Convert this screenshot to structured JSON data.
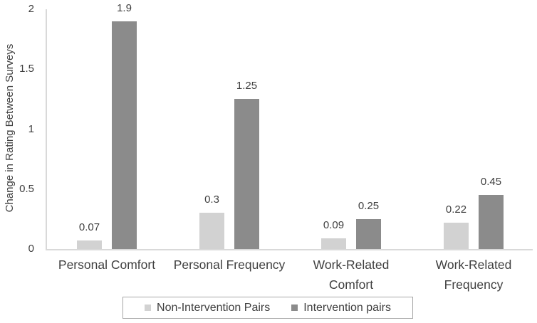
{
  "chart_data": {
    "type": "bar",
    "title": "",
    "ylabel": "Change in Rating Between Surveys",
    "xlabel": "",
    "ylim": [
      0,
      2
    ],
    "yticks": [
      0,
      0.5,
      1,
      1.5,
      2
    ],
    "ytick_labels": [
      "0",
      "0.5",
      "1",
      "1.5",
      "2"
    ],
    "categories": [
      "Personal Comfort",
      "Personal Frequency",
      "Work-Related Comfort",
      "Work-Related Frequency"
    ],
    "x_tick_labels": [
      "Personal Comfort",
      "Personal Frequency",
      "Work-Related\nComfort",
      "Work-Related\nFrequency"
    ],
    "series": [
      {
        "name": "Non-Intervention Pairs",
        "color": "#d2d2d2",
        "values": [
          0.07,
          0.3,
          0.09,
          0.22
        ],
        "value_labels": [
          "0.07",
          "0.3",
          "0.09",
          "0.22"
        ]
      },
      {
        "name": "Intervention pairs",
        "color": "#8b8b8b",
        "values": [
          1.9,
          1.25,
          0.25,
          0.45
        ],
        "value_labels": [
          "1.9",
          "1.25",
          "0.25",
          "0.45"
        ]
      }
    ],
    "grid": false,
    "legend_position": "bottom"
  },
  "colors": {
    "background": "#ffffff",
    "text": "#3f3f3f",
    "axis_line": "#d9d9d9",
    "legend_border": "#a6a6a6",
    "non_intervention_bar": "#d2d2d2",
    "intervention_bar": "#8b8b8b"
  }
}
